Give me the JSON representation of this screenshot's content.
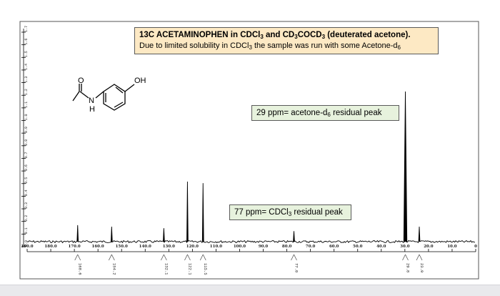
{
  "annotations": {
    "title_bold": "13C ACETAMINOPHEN in CDCl",
    "title_bold_sub1": "3",
    "title_bold_mid": " and CD",
    "title_bold_sub2": "3",
    "title_bold_end": "COCD",
    "title_bold_sub3": "3",
    "title_bold_tail": " (deuterated acetone).",
    "subtitle_start": "Due to limited solubility in CDCl",
    "subtitle_sub": "3",
    "subtitle_end": " the sample was run with some Acetone-d",
    "subtitle_sub2": "6",
    "acetone_label": "29 ppm= acetone-d",
    "acetone_sub": "6",
    "acetone_label_end": " residual peak",
    "cdcl3_label": "77 ppm= CDCl",
    "cdcl3_sub": "3",
    "cdcl3_label_end": " residual peak"
  },
  "molecule": {
    "atoms": [
      "O",
      "N",
      "H",
      "OH"
    ]
  },
  "chart_data": {
    "type": "line",
    "title": "13C ACETAMINOPHEN in CDCl3 and CD3COCD3 (deuterated acetone).",
    "xlabel": "",
    "ylabel": "",
    "x_unit": "ppm",
    "x_direction": "descending",
    "xlim": [
      190.0,
      0.0
    ],
    "x_ticks": [
      190.0,
      180.0,
      170.0,
      160.0,
      150.0,
      140.0,
      130.0,
      120.0,
      110.0,
      100.0,
      90.0,
      80.0,
      70.0,
      60.0,
      50.0,
      40.0,
      30.0,
      20.0,
      10.0,
      0.0
    ],
    "x_tick_labels": [
      "190.0",
      "180.0",
      "170.0",
      "160.0",
      "150.0",
      "140.0",
      "130.0",
      "120.0",
      "110.0",
      "100.0",
      "90.0",
      "80.0",
      "70.0",
      "60.0",
      "50.0",
      "40.0",
      "30.0",
      "20.0",
      "10.0",
      "0"
    ],
    "peaks": [
      {
        "ppm": 168.6,
        "intensity": 0.11
      },
      {
        "ppm": 154.2,
        "intensity": 0.1
      },
      {
        "ppm": 132.1,
        "intensity": 0.09
      },
      {
        "ppm": 122.1,
        "intensity": 0.4
      },
      {
        "ppm": 115.5,
        "intensity": 0.39
      },
      {
        "ppm": 77.0,
        "intensity": 0.07
      },
      {
        "ppm": 29.8,
        "intensity": 1.0
      },
      {
        "ppm": 23.9,
        "intensity": 0.1
      }
    ],
    "integrals": [
      {
        "ppm": 168.6,
        "label": "168.6"
      },
      {
        "ppm": 154.2,
        "label": "154.2"
      },
      {
        "ppm": 132.1,
        "label": "132.1"
      },
      {
        "ppm": 122.1,
        "label": "122.1"
      },
      {
        "ppm": 115.5,
        "label": "115.5"
      },
      {
        "ppm": 77.0,
        "label": "77.0"
      },
      {
        "ppm": 29.8,
        "label": "29.8"
      },
      {
        "ppm": 23.9,
        "label": "23.9"
      }
    ],
    "left_axis_labels": [
      "0.0",
      "0.1",
      "0.2",
      "0.3",
      "0.4",
      "0.5",
      "0.6",
      "0.7",
      "0.8",
      "0.9",
      "1.0",
      "1.1",
      "1.2",
      "1.3",
      "1.4",
      "1.5",
      "1.6",
      "1.7"
    ],
    "grid": false,
    "colors": {
      "trace": "#000000",
      "title_bg": "#fde9c4",
      "label_bg": "#e7f2dd"
    }
  }
}
